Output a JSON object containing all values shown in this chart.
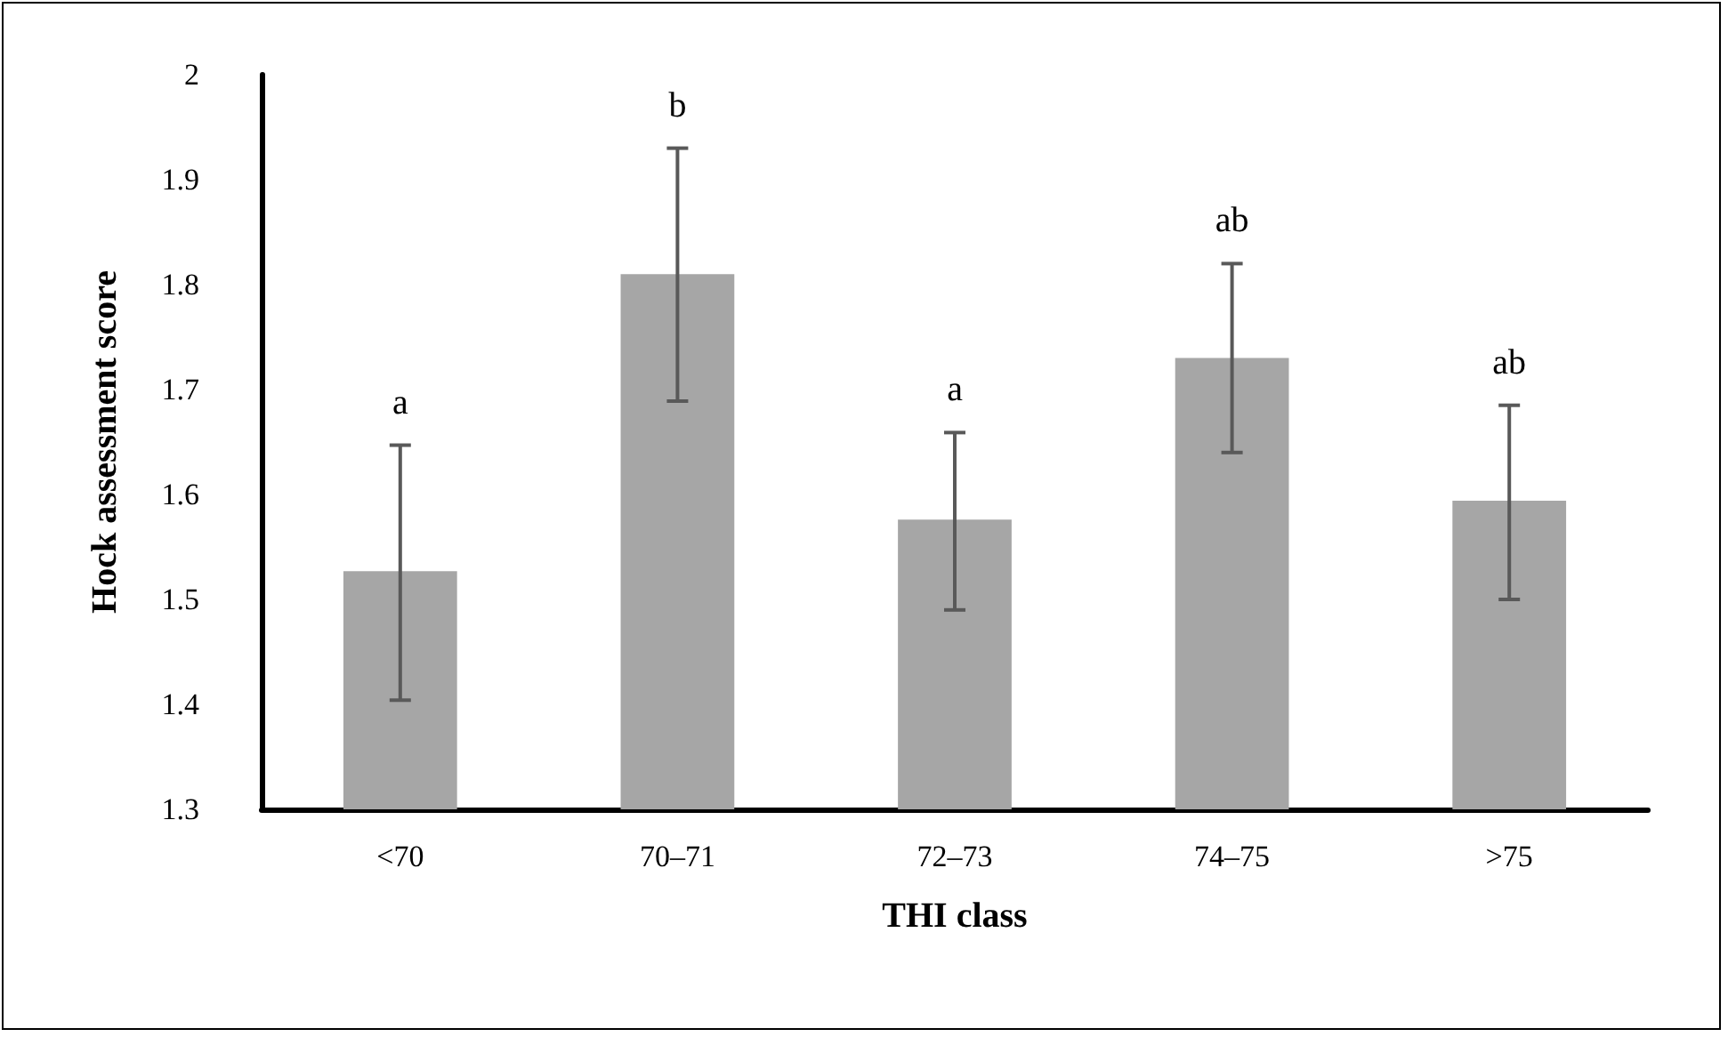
{
  "chart_data": {
    "type": "bar",
    "xlabel": "THI class",
    "ylabel": "Hock assessment score",
    "categories": [
      "<70",
      "70–71",
      "72–73",
      "74–75",
      ">75"
    ],
    "values": [
      1.527,
      1.81,
      1.576,
      1.73,
      1.594
    ],
    "errors": [
      [
        1.404,
        1.647
      ],
      [
        1.689,
        1.93
      ],
      [
        1.49,
        1.659
      ],
      [
        1.64,
        1.82
      ],
      [
        1.5,
        1.685
      ]
    ],
    "color": "#a6a6a6",
    "ylim": [
      1.3,
      2
    ],
    "yticks": [
      1.3,
      1.4,
      1.5,
      1.6,
      1.7,
      1.8,
      1.9,
      2
    ],
    "annotations": [
      {
        "text": "a",
        "x": "<70",
        "y": 1.647
      },
      {
        "text": "b",
        "x": "70–71",
        "y": 1.93
      },
      {
        "text": "a",
        "x": "72–73",
        "y": 1.659
      },
      {
        "text": "ab",
        "x": "74–75",
        "y": 1.82
      },
      {
        "text": "ab",
        "x": ">75",
        "y": 1.685
      }
    ]
  }
}
